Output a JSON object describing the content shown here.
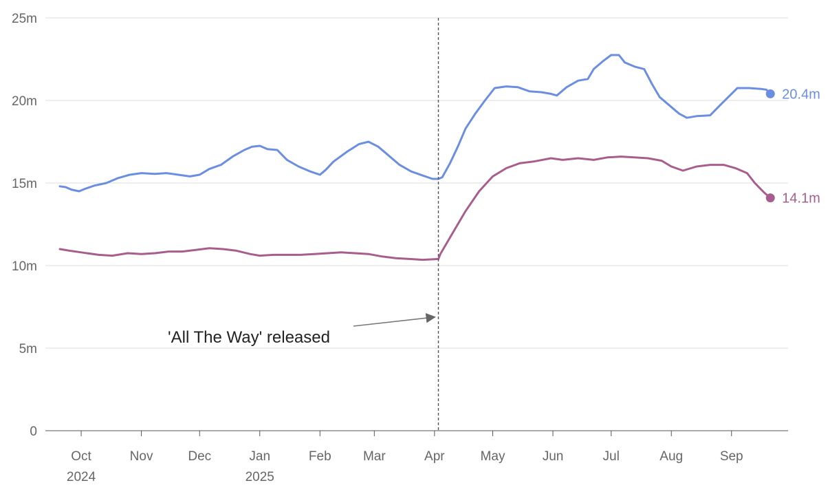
{
  "chart_data": {
    "type": "line",
    "title": "",
    "xlabel": "",
    "ylabel": "",
    "x_range": [
      "2024-09-20",
      "2025-09-22"
    ],
    "ylim": [
      0,
      25
    ],
    "y_unit_suffix": "m",
    "y_ticks": [
      {
        "value": 0,
        "label": "0"
      },
      {
        "value": 5,
        "label": "5m"
      },
      {
        "value": 10,
        "label": "10m"
      },
      {
        "value": 15,
        "label": "15m"
      },
      {
        "value": 20,
        "label": "20m"
      },
      {
        "value": 25,
        "label": "25m"
      }
    ],
    "x_ticks": [
      {
        "date": "2024-10-01",
        "label": "Oct",
        "sublabel": "2024"
      },
      {
        "date": "2024-11-01",
        "label": "Nov",
        "sublabel": ""
      },
      {
        "date": "2024-12-01",
        "label": "Dec",
        "sublabel": ""
      },
      {
        "date": "2025-01-01",
        "label": "Jan",
        "sublabel": "2025"
      },
      {
        "date": "2025-02-01",
        "label": "Feb",
        "sublabel": ""
      },
      {
        "date": "2025-03-01",
        "label": "Mar",
        "sublabel": ""
      },
      {
        "date": "2025-04-01",
        "label": "Apr",
        "sublabel": ""
      },
      {
        "date": "2025-05-01",
        "label": "May",
        "sublabel": ""
      },
      {
        "date": "2025-06-01",
        "label": "Jun",
        "sublabel": ""
      },
      {
        "date": "2025-07-01",
        "label": "Jul",
        "sublabel": ""
      },
      {
        "date": "2025-08-01",
        "label": "Aug",
        "sublabel": ""
      },
      {
        "date": "2025-09-01",
        "label": "Sep",
        "sublabel": ""
      }
    ],
    "grid": true,
    "legend": "none",
    "series": [
      {
        "color": "#6b8ee0",
        "end_label": "20.4m",
        "points": [
          [
            "2024-09-20",
            14.8
          ],
          [
            "2024-09-23",
            14.75
          ],
          [
            "2024-09-26",
            14.6
          ],
          [
            "2024-09-30",
            14.5
          ],
          [
            "2024-10-03",
            14.65
          ],
          [
            "2024-10-08",
            14.85
          ],
          [
            "2024-10-14",
            15.0
          ],
          [
            "2024-10-20",
            15.3
          ],
          [
            "2024-10-26",
            15.5
          ],
          [
            "2024-11-01",
            15.6
          ],
          [
            "2024-11-08",
            15.55
          ],
          [
            "2024-11-14",
            15.6
          ],
          [
            "2024-11-20",
            15.5
          ],
          [
            "2024-11-26",
            15.4
          ],
          [
            "2024-12-01",
            15.5
          ],
          [
            "2024-12-06",
            15.85
          ],
          [
            "2024-12-12",
            16.1
          ],
          [
            "2024-12-18",
            16.6
          ],
          [
            "2024-12-24",
            17.0
          ],
          [
            "2024-12-28",
            17.2
          ],
          [
            "2025-01-01",
            17.25
          ],
          [
            "2025-01-05",
            17.05
          ],
          [
            "2025-01-10",
            17.0
          ],
          [
            "2025-01-15",
            16.4
          ],
          [
            "2025-01-21",
            16.0
          ],
          [
            "2025-01-27",
            15.7
          ],
          [
            "2025-02-01",
            15.5
          ],
          [
            "2025-02-04",
            15.8
          ],
          [
            "2025-02-08",
            16.3
          ],
          [
            "2025-02-15",
            16.9
          ],
          [
            "2025-02-21",
            17.35
          ],
          [
            "2025-02-26",
            17.5
          ],
          [
            "2025-03-03",
            17.2
          ],
          [
            "2025-03-08",
            16.7
          ],
          [
            "2025-03-14",
            16.1
          ],
          [
            "2025-03-20",
            15.7
          ],
          [
            "2025-03-26",
            15.45
          ],
          [
            "2025-03-31",
            15.25
          ],
          [
            "2025-04-03",
            15.25
          ],
          [
            "2025-04-05",
            15.35
          ],
          [
            "2025-04-09",
            16.2
          ],
          [
            "2025-04-13",
            17.2
          ],
          [
            "2025-04-17",
            18.3
          ],
          [
            "2025-04-22",
            19.2
          ],
          [
            "2025-04-27",
            20.0
          ],
          [
            "2025-05-02",
            20.75
          ],
          [
            "2025-05-08",
            20.85
          ],
          [
            "2025-05-14",
            20.8
          ],
          [
            "2025-05-20",
            20.55
          ],
          [
            "2025-05-26",
            20.5
          ],
          [
            "2025-05-31",
            20.4
          ],
          [
            "2025-06-03",
            20.3
          ],
          [
            "2025-06-08",
            20.8
          ],
          [
            "2025-06-14",
            21.2
          ],
          [
            "2025-06-19",
            21.3
          ],
          [
            "2025-06-22",
            21.9
          ],
          [
            "2025-06-27",
            22.4
          ],
          [
            "2025-07-01",
            22.75
          ],
          [
            "2025-07-05",
            22.75
          ],
          [
            "2025-07-08",
            22.3
          ],
          [
            "2025-07-13",
            22.05
          ],
          [
            "2025-07-18",
            21.9
          ],
          [
            "2025-07-22",
            21.0
          ],
          [
            "2025-07-26",
            20.2
          ],
          [
            "2025-07-31",
            19.7
          ],
          [
            "2025-08-05",
            19.2
          ],
          [
            "2025-08-09",
            18.95
          ],
          [
            "2025-08-14",
            19.05
          ],
          [
            "2025-08-21",
            19.1
          ],
          [
            "2025-08-26",
            19.7
          ],
          [
            "2025-09-01",
            20.4
          ],
          [
            "2025-09-04",
            20.75
          ],
          [
            "2025-09-10",
            20.75
          ],
          [
            "2025-09-16",
            20.7
          ],
          [
            "2025-09-19",
            20.65
          ],
          [
            "2025-09-21",
            20.4
          ]
        ]
      },
      {
        "color": "#a85e8c",
        "end_label": "14.1m",
        "points": [
          [
            "2024-09-20",
            11.0
          ],
          [
            "2024-09-25",
            10.9
          ],
          [
            "2024-10-01",
            10.8
          ],
          [
            "2024-10-10",
            10.65
          ],
          [
            "2024-10-17",
            10.6
          ],
          [
            "2024-10-25",
            10.75
          ],
          [
            "2024-11-01",
            10.7
          ],
          [
            "2024-11-08",
            10.75
          ],
          [
            "2024-11-15",
            10.85
          ],
          [
            "2024-11-22",
            10.85
          ],
          [
            "2024-11-29",
            10.95
          ],
          [
            "2024-12-06",
            11.05
          ],
          [
            "2024-12-13",
            11.0
          ],
          [
            "2024-12-20",
            10.9
          ],
          [
            "2024-12-27",
            10.7
          ],
          [
            "2025-01-01",
            10.6
          ],
          [
            "2025-01-08",
            10.65
          ],
          [
            "2025-01-15",
            10.65
          ],
          [
            "2025-01-22",
            10.65
          ],
          [
            "2025-01-29",
            10.7
          ],
          [
            "2025-02-05",
            10.75
          ],
          [
            "2025-02-12",
            10.8
          ],
          [
            "2025-02-19",
            10.75
          ],
          [
            "2025-02-26",
            10.7
          ],
          [
            "2025-03-05",
            10.55
          ],
          [
            "2025-03-12",
            10.45
          ],
          [
            "2025-03-19",
            10.4
          ],
          [
            "2025-03-26",
            10.35
          ],
          [
            "2025-04-03",
            10.4
          ],
          [
            "2025-04-04",
            10.7
          ],
          [
            "2025-04-10",
            11.9
          ],
          [
            "2025-04-17",
            13.3
          ],
          [
            "2025-04-24",
            14.5
          ],
          [
            "2025-05-01",
            15.4
          ],
          [
            "2025-05-08",
            15.9
          ],
          [
            "2025-05-15",
            16.2
          ],
          [
            "2025-05-22",
            16.3
          ],
          [
            "2025-05-31",
            16.5
          ],
          [
            "2025-06-06",
            16.4
          ],
          [
            "2025-06-14",
            16.5
          ],
          [
            "2025-06-22",
            16.4
          ],
          [
            "2025-06-29",
            16.55
          ],
          [
            "2025-07-06",
            16.6
          ],
          [
            "2025-07-13",
            16.55
          ],
          [
            "2025-07-20",
            16.5
          ],
          [
            "2025-07-27",
            16.35
          ],
          [
            "2025-08-01",
            16.0
          ],
          [
            "2025-08-07",
            15.75
          ],
          [
            "2025-08-14",
            16.0
          ],
          [
            "2025-08-21",
            16.1
          ],
          [
            "2025-08-28",
            16.1
          ],
          [
            "2025-09-03",
            15.9
          ],
          [
            "2025-09-09",
            15.6
          ],
          [
            "2025-09-13",
            15.0
          ],
          [
            "2025-09-18",
            14.4
          ],
          [
            "2025-09-21",
            14.1
          ]
        ]
      }
    ],
    "event_marker": {
      "date": "2025-04-03",
      "label": "'All The Way' released",
      "value_at_arrow": 6.8
    }
  }
}
